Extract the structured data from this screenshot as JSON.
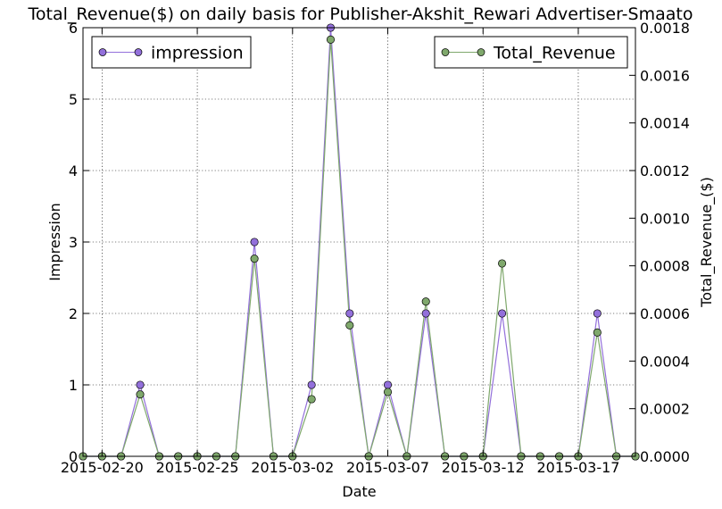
{
  "chart_data": {
    "type": "line",
    "title": "Total_Revenue($) on daily basis for Publisher-Akshit_Rewari Advertiser-Smaato",
    "xlabel": "Date",
    "ylabel_left": "Impression",
    "ylabel_right": "Total_Revenue_($)",
    "x": [
      "2015-02-19",
      "2015-02-20",
      "2015-02-21",
      "2015-02-22",
      "2015-02-23",
      "2015-02-24",
      "2015-02-25",
      "2015-02-26",
      "2015-02-27",
      "2015-02-28",
      "2015-03-01",
      "2015-03-02",
      "2015-03-03",
      "2015-03-04",
      "2015-03-05",
      "2015-03-06",
      "2015-03-07",
      "2015-03-08",
      "2015-03-09",
      "2015-03-10",
      "2015-03-11",
      "2015-03-12",
      "2015-03-13",
      "2015-03-14",
      "2015-03-15",
      "2015-03-16",
      "2015-03-17",
      "2015-03-18",
      "2015-03-19",
      "2015-03-20"
    ],
    "x_ticks": [
      "2015-02-20",
      "2015-02-25",
      "2015-03-02",
      "2015-03-07",
      "2015-03-12",
      "2015-03-17"
    ],
    "y_left_ticks": [
      "0",
      "1",
      "2",
      "3",
      "4",
      "5",
      "6"
    ],
    "y_right_ticks": [
      "0.0000",
      "0.0002",
      "0.0004",
      "0.0006",
      "0.0008",
      "0.0010",
      "0.0012",
      "0.0014",
      "0.0016",
      "0.0018"
    ],
    "ylim_left": [
      0,
      6
    ],
    "ylim_right": [
      0,
      0.0018
    ],
    "grid": true,
    "series": [
      {
        "name": "impression",
        "axis": "left",
        "color": "#9370DB",
        "values": [
          0,
          0,
          0,
          1,
          0,
          0,
          0,
          0,
          0,
          3,
          0,
          0,
          1,
          6,
          2,
          0,
          1,
          0,
          2,
          0,
          0,
          0,
          2,
          0,
          0,
          0,
          0,
          2,
          0,
          0
        ]
      },
      {
        "name": "Total_Revenue",
        "axis": "right",
        "color": "#7FA86C",
        "values": [
          0,
          0,
          0,
          0.00026,
          0,
          0,
          0,
          0,
          0,
          0.00083,
          0,
          0,
          0.00024,
          0.00175,
          0.00055,
          0,
          0.00027,
          0,
          0.00065,
          0,
          0,
          0,
          0.00081,
          0,
          0,
          0,
          0,
          0.00052,
          0,
          0
        ]
      }
    ],
    "legend_left": "top-left",
    "legend_right": "top-right"
  }
}
